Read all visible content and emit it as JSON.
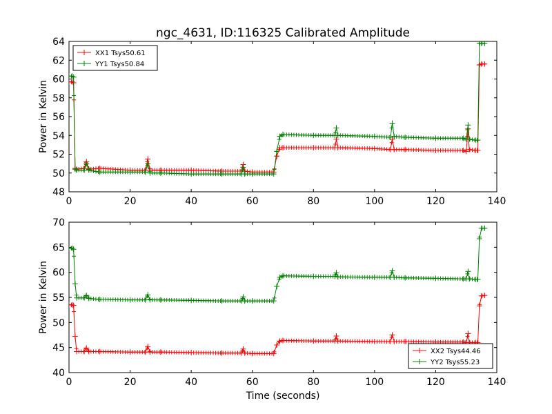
{
  "figure": {
    "title": "ngc_4631, ID:116325 Calibrated Amplitude",
    "xlabel": "Time (seconds)"
  },
  "colors": {
    "red": "#ff0000",
    "green": "#008000",
    "axes": "#000000",
    "background": "#ffffff"
  },
  "chart_data": [
    {
      "type": "line",
      "title": "ngc_4631, ID:116325 Calibrated Amplitude",
      "xlabel": "",
      "ylabel": "Power in Kelvin",
      "xlim": [
        0,
        140
      ],
      "ylim": [
        48,
        64
      ],
      "xticks": [
        0,
        20,
        40,
        60,
        80,
        100,
        120,
        140
      ],
      "yticks": [
        48,
        50,
        52,
        54,
        56,
        58,
        60,
        62,
        64
      ],
      "legend_position": "top-left",
      "grid": false,
      "marker": "+",
      "series": [
        {
          "name": "XX1 Tsys50.61",
          "color": "#ff0000",
          "x": [
            0,
            1,
            1.5,
            2,
            2.5,
            5,
            5.7,
            6.5,
            10,
            20,
            25,
            25.8,
            26.5,
            30,
            40,
            50,
            56.5,
            57,
            57.5,
            60,
            67,
            68,
            69,
            70,
            80,
            87,
            87.5,
            88,
            100,
            105.2,
            105.8,
            106.4,
            110,
            120,
            129,
            130,
            130.6,
            131,
            133,
            133.8,
            134.3,
            135,
            136
          ],
          "y": [
            59.7,
            59.7,
            59.6,
            50.5,
            50.4,
            50.5,
            51.2,
            50.4,
            50.5,
            50.3,
            50.3,
            51.5,
            50.3,
            50.3,
            50.3,
            50.2,
            50.2,
            50.9,
            50.2,
            50.1,
            50.1,
            51.8,
            52.7,
            52.7,
            52.7,
            52.7,
            53.6,
            52.7,
            52.6,
            52.5,
            53.6,
            52.5,
            52.5,
            52.4,
            52.4,
            52.3,
            54.7,
            52.5,
            52.4,
            52.4,
            61.5,
            61.6,
            61.6
          ]
        },
        {
          "name": "YY1 Tsys50.84",
          "color": "#008000",
          "x": [
            0,
            1,
            1.5,
            2,
            2.5,
            5,
            5.7,
            6.5,
            10,
            20,
            25,
            25.8,
            26.5,
            30,
            40,
            50,
            56.5,
            57,
            57.5,
            60,
            67,
            68,
            69,
            70,
            80,
            87,
            87.5,
            88,
            100,
            105.2,
            105.8,
            106.4,
            110,
            120,
            129,
            130,
            130.6,
            131,
            133,
            133.8,
            134.3,
            135,
            136
          ],
          "y": [
            60.3,
            60.3,
            60.2,
            50.4,
            50.3,
            50.3,
            51.0,
            50.3,
            50.1,
            50.1,
            50.1,
            51.0,
            50.0,
            50.0,
            49.9,
            49.9,
            49.9,
            50.6,
            49.9,
            49.9,
            49.9,
            52.3,
            53.9,
            54.1,
            54.0,
            54.0,
            54.8,
            54.0,
            53.9,
            53.8,
            55.3,
            53.9,
            53.8,
            53.7,
            53.7,
            53.6,
            55.1,
            53.6,
            53.5,
            53.5,
            63.8,
            63.8,
            63.8
          ]
        }
      ]
    },
    {
      "type": "line",
      "title": "",
      "xlabel": "Time (seconds)",
      "ylabel": "Power in Kelvin",
      "xlim": [
        0,
        140
      ],
      "ylim": [
        40,
        70
      ],
      "xticks": [
        0,
        20,
        40,
        60,
        80,
        100,
        120,
        140
      ],
      "yticks": [
        40,
        45,
        50,
        55,
        60,
        65,
        70
      ],
      "legend_position": "bottom-right",
      "grid": false,
      "marker": "+",
      "series": [
        {
          "name": "XX2 Tsys44.46",
          "color": "#ff0000",
          "x": [
            0,
            1,
            1.5,
            2,
            2.5,
            5,
            5.7,
            6.5,
            10,
            20,
            25,
            25.8,
            26.5,
            30,
            40,
            50,
            56.5,
            57,
            57.5,
            60,
            67,
            68,
            69,
            70,
            80,
            87,
            87.5,
            88,
            100,
            105.2,
            105.8,
            106.4,
            110,
            120,
            129,
            130,
            130.6,
            131,
            133,
            133.8,
            134.3,
            135,
            136
          ],
          "y": [
            53.5,
            53.5,
            53.4,
            47.2,
            44.2,
            44.2,
            44.9,
            44.2,
            44.2,
            44.1,
            44.1,
            45.2,
            44.1,
            44.1,
            44.0,
            43.9,
            43.9,
            44.7,
            43.9,
            43.8,
            43.8,
            45.5,
            46.3,
            46.4,
            46.3,
            46.3,
            47.3,
            46.3,
            46.2,
            46.2,
            47.5,
            46.2,
            46.2,
            46.1,
            46.1,
            46.0,
            47.8,
            46.0,
            46.0,
            46.0,
            53.3,
            55.3,
            55.4
          ]
        },
        {
          "name": "YY2 Tsys55.23",
          "color": "#008000",
          "x": [
            0,
            1,
            1.5,
            2,
            2.5,
            5,
            5.7,
            6.5,
            10,
            20,
            25,
            25.8,
            26.5,
            30,
            40,
            50,
            56.5,
            57,
            57.5,
            60,
            67,
            68,
            69,
            70,
            80,
            87,
            87.5,
            88,
            100,
            105.2,
            105.8,
            106.4,
            110,
            120,
            129,
            130,
            130.6,
            131,
            133,
            133.8,
            134.3,
            135,
            136
          ],
          "y": [
            64.8,
            64.8,
            64.6,
            57.7,
            54.9,
            54.9,
            55.4,
            54.8,
            54.6,
            54.5,
            54.5,
            55.5,
            54.5,
            54.5,
            54.4,
            54.3,
            54.3,
            55.1,
            54.3,
            54.3,
            54.3,
            57.2,
            59.0,
            59.3,
            59.2,
            59.2,
            59.9,
            59.1,
            59.0,
            59.0,
            60.3,
            59.0,
            58.9,
            58.8,
            58.7,
            58.7,
            60.2,
            58.7,
            58.6,
            58.6,
            66.7,
            68.8,
            68.8
          ]
        }
      ]
    }
  ]
}
